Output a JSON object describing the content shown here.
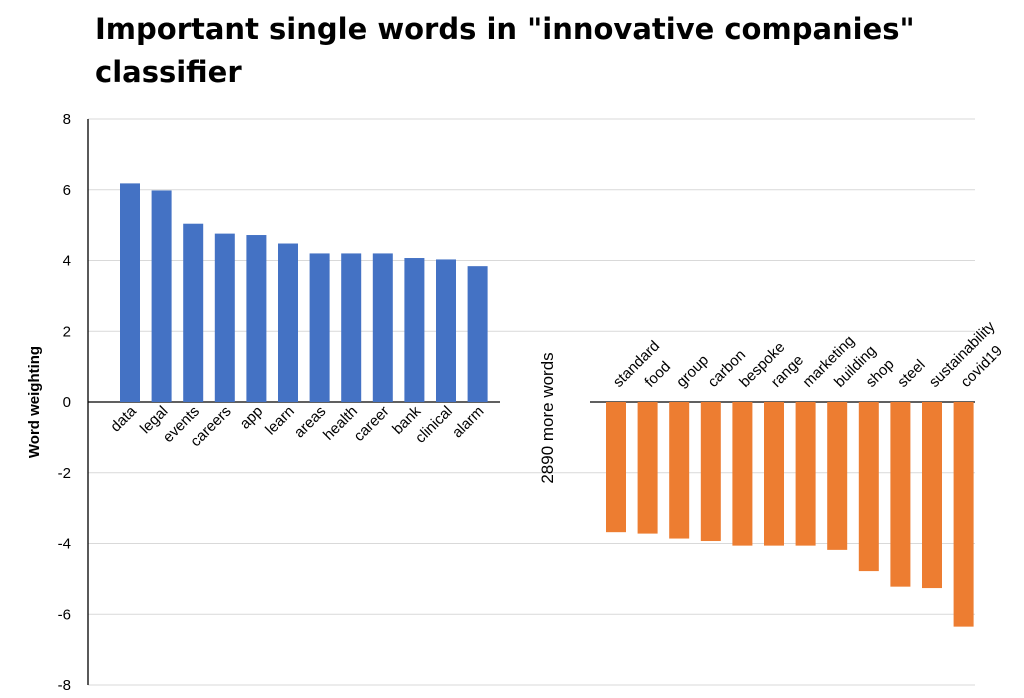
{
  "chart_data": {
    "type": "bar",
    "title": "Important single words in \"innovative companies\" classifier",
    "xlabel": "",
    "ylabel": "Word weighting",
    "ylim": [
      -8,
      8
    ],
    "yticks": [
      8,
      6,
      4,
      2,
      0,
      -2,
      -4,
      -6,
      -8
    ],
    "grid": true,
    "gap_label": "2890 more words",
    "colors": {
      "positive": "#4472C4",
      "negative": "#ED7D31"
    },
    "series": [
      {
        "categories": [
          "data",
          "legal",
          "events",
          "careers",
          "app",
          "learn",
          "areas",
          "health",
          "career",
          "bank",
          "clinical",
          "alarm"
        ],
        "values": [
          6.18,
          5.98,
          5.04,
          4.76,
          4.72,
          4.48,
          4.2,
          4.2,
          4.2,
          4.07,
          4.03,
          3.84
        ]
      },
      {
        "categories": [
          "standard",
          "food",
          "group",
          "carbon",
          "bespoke",
          "range",
          "marketing",
          "building",
          "shop",
          "steel",
          "sustainability",
          "covid19"
        ],
        "values": [
          -3.68,
          -3.72,
          -3.86,
          -3.93,
          -4.06,
          -4.06,
          -4.06,
          -4.18,
          -4.78,
          -5.22,
          -5.26,
          -6.35
        ]
      }
    ]
  }
}
